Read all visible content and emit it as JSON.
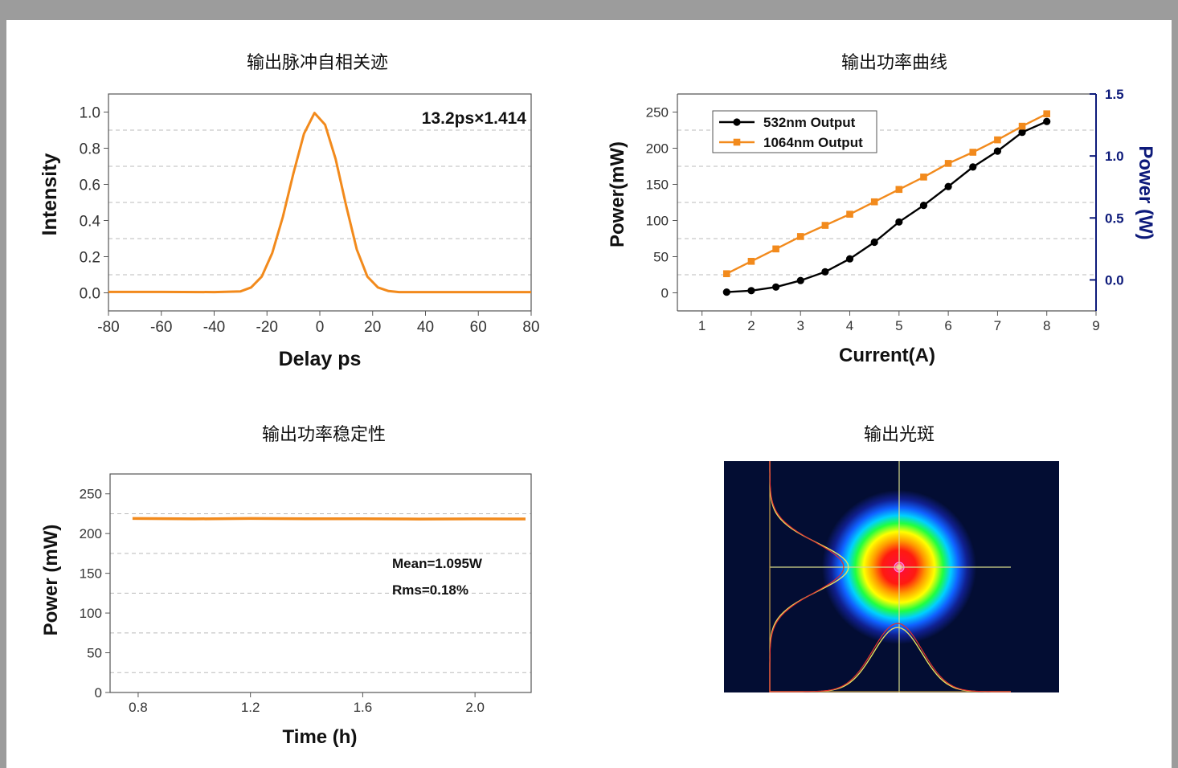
{
  "page": {
    "background": "#ffffff",
    "frame_color": "#9c9c9c"
  },
  "chart_data": [
    {
      "id": "autocorrelation",
      "type": "line",
      "title": "输出脉冲自相关迹",
      "xlabel": "Delay ps",
      "ylabel": "Intensity",
      "xlim": [
        -80,
        80
      ],
      "ylim": [
        -0.1,
        1.1
      ],
      "xticks": [
        -80,
        -60,
        -40,
        -20,
        0,
        20,
        40,
        60,
        80
      ],
      "yticks": [
        0.0,
        0.2,
        0.4,
        0.6,
        0.8,
        1.0
      ],
      "ytick_labels": [
        "0.0",
        "0.2",
        "0.4",
        "0.6",
        "0.8",
        "1.0"
      ],
      "gridlines_y": [
        0.1,
        0.3,
        0.5,
        0.7,
        0.9
      ],
      "grid": "horizontal dashed",
      "annotation": "13.2ps×1.414",
      "series": [
        {
          "color": "#f28a1c",
          "x": [
            -80,
            -60,
            -40,
            -30,
            -26,
            -22,
            -18,
            -14,
            -10,
            -6,
            -2,
            2,
            6,
            10,
            14,
            18,
            22,
            26,
            30,
            40,
            60,
            80
          ],
          "y": [
            0.005,
            0.005,
            0.004,
            0.008,
            0.03,
            0.09,
            0.22,
            0.42,
            0.66,
            0.88,
            0.995,
            0.93,
            0.74,
            0.48,
            0.24,
            0.09,
            0.03,
            0.01,
            0.004,
            0.004,
            0.004,
            0.004
          ]
        }
      ]
    },
    {
      "id": "output-power",
      "type": "line",
      "title": "输出功率曲线",
      "xlabel": "Current(A)",
      "ylabel": "Power(mW)",
      "ylabel_right": "Power (W)",
      "right_axis_color": "#0d1a7a",
      "xlim": [
        0.5,
        9
      ],
      "ylim": [
        -25,
        275
      ],
      "ylim_right": [
        -0.25,
        1.5
      ],
      "xticks": [
        1,
        2,
        3,
        4,
        5,
        6,
        7,
        8,
        9
      ],
      "yticks": [
        0,
        50,
        100,
        150,
        200,
        250
      ],
      "yticks_right": [
        0.0,
        0.5,
        1.0,
        1.5
      ],
      "ytick_labels_right": [
        "0.0",
        "0.5",
        "1.0",
        "1.5"
      ],
      "gridlines_y": [
        25,
        75,
        125,
        175,
        225
      ],
      "grid": "horizontal dashed",
      "legend_position": "top-left",
      "series": [
        {
          "name": "532nm  Output",
          "color": "#000000",
          "marker": "circle",
          "x": [
            1.5,
            2,
            2.5,
            3,
            3.5,
            4,
            4.5,
            5,
            5.5,
            6,
            6.5,
            7,
            7.5,
            8
          ],
          "y": [
            1,
            3,
            8,
            17,
            29,
            47,
            70,
            98,
            121,
            147,
            174,
            196,
            222,
            237
          ]
        },
        {
          "name": "1064nm Output",
          "color": "#f28a1c",
          "marker": "square",
          "axis": "right",
          "x": [
            1.5,
            2,
            2.5,
            3,
            3.5,
            4,
            4.5,
            5,
            5.5,
            6,
            6.5,
            7,
            7.5,
            8
          ],
          "y": [
            0.05,
            0.15,
            0.25,
            0.35,
            0.44,
            0.53,
            0.63,
            0.73,
            0.83,
            0.94,
            1.03,
            1.13,
            1.24,
            1.34
          ]
        }
      ]
    },
    {
      "id": "power-stability",
      "type": "line",
      "title": "输出功率稳定性",
      "xlabel": "Time (h)",
      "ylabel": "Power (mW)",
      "xlim": [
        0.7,
        2.2
      ],
      "ylim": [
        0,
        275
      ],
      "xticks": [
        0.8,
        1.2,
        1.6,
        2.0
      ],
      "xtick_labels": [
        "0.8",
        "1.2",
        "1.6",
        "2.0"
      ],
      "yticks": [
        0,
        50,
        100,
        150,
        200,
        250
      ],
      "gridlines_y": [
        25,
        75,
        125,
        175,
        225,
        275
      ],
      "grid": "horizontal dashed",
      "annotations": [
        "Mean=1.095W",
        "Rms=0.18%"
      ],
      "series": [
        {
          "color": "#f28a1c",
          "x": [
            0.78,
            1.0,
            1.2,
            1.4,
            1.6,
            1.8,
            2.0,
            2.18
          ],
          "y": [
            219,
            218.5,
            219,
            218.7,
            218.6,
            218.3,
            218.5,
            218.4
          ]
        }
      ]
    }
  ],
  "beam_profile": {
    "title": "输出光斑",
    "background": "#030d33",
    "crosshair_color": "#d8dc8a"
  }
}
